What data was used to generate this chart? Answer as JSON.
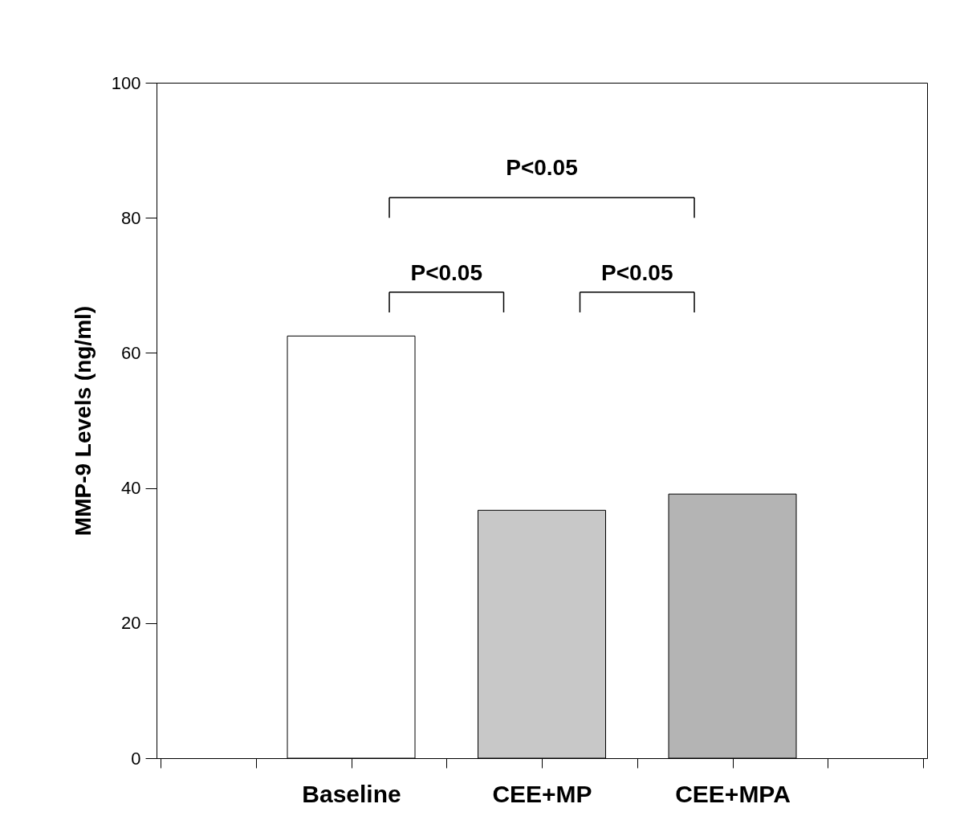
{
  "chart_data": {
    "type": "bar",
    "ylabel": "MMP-9 Levels (ng/ml)",
    "categories": [
      "Baseline",
      "CEE+MP",
      "CEE+MPA"
    ],
    "values": [
      62.5,
      36.7,
      39.1
    ],
    "colors": [
      "#ffffff",
      "#c8c8c8",
      "#b4b4b4"
    ],
    "ylim": [
      0,
      100
    ],
    "yticks": [
      0,
      20,
      40,
      60,
      80,
      100
    ],
    "grid": false,
    "annotations": [
      "P<0.05",
      "P<0.05",
      "P<0.05"
    ]
  }
}
